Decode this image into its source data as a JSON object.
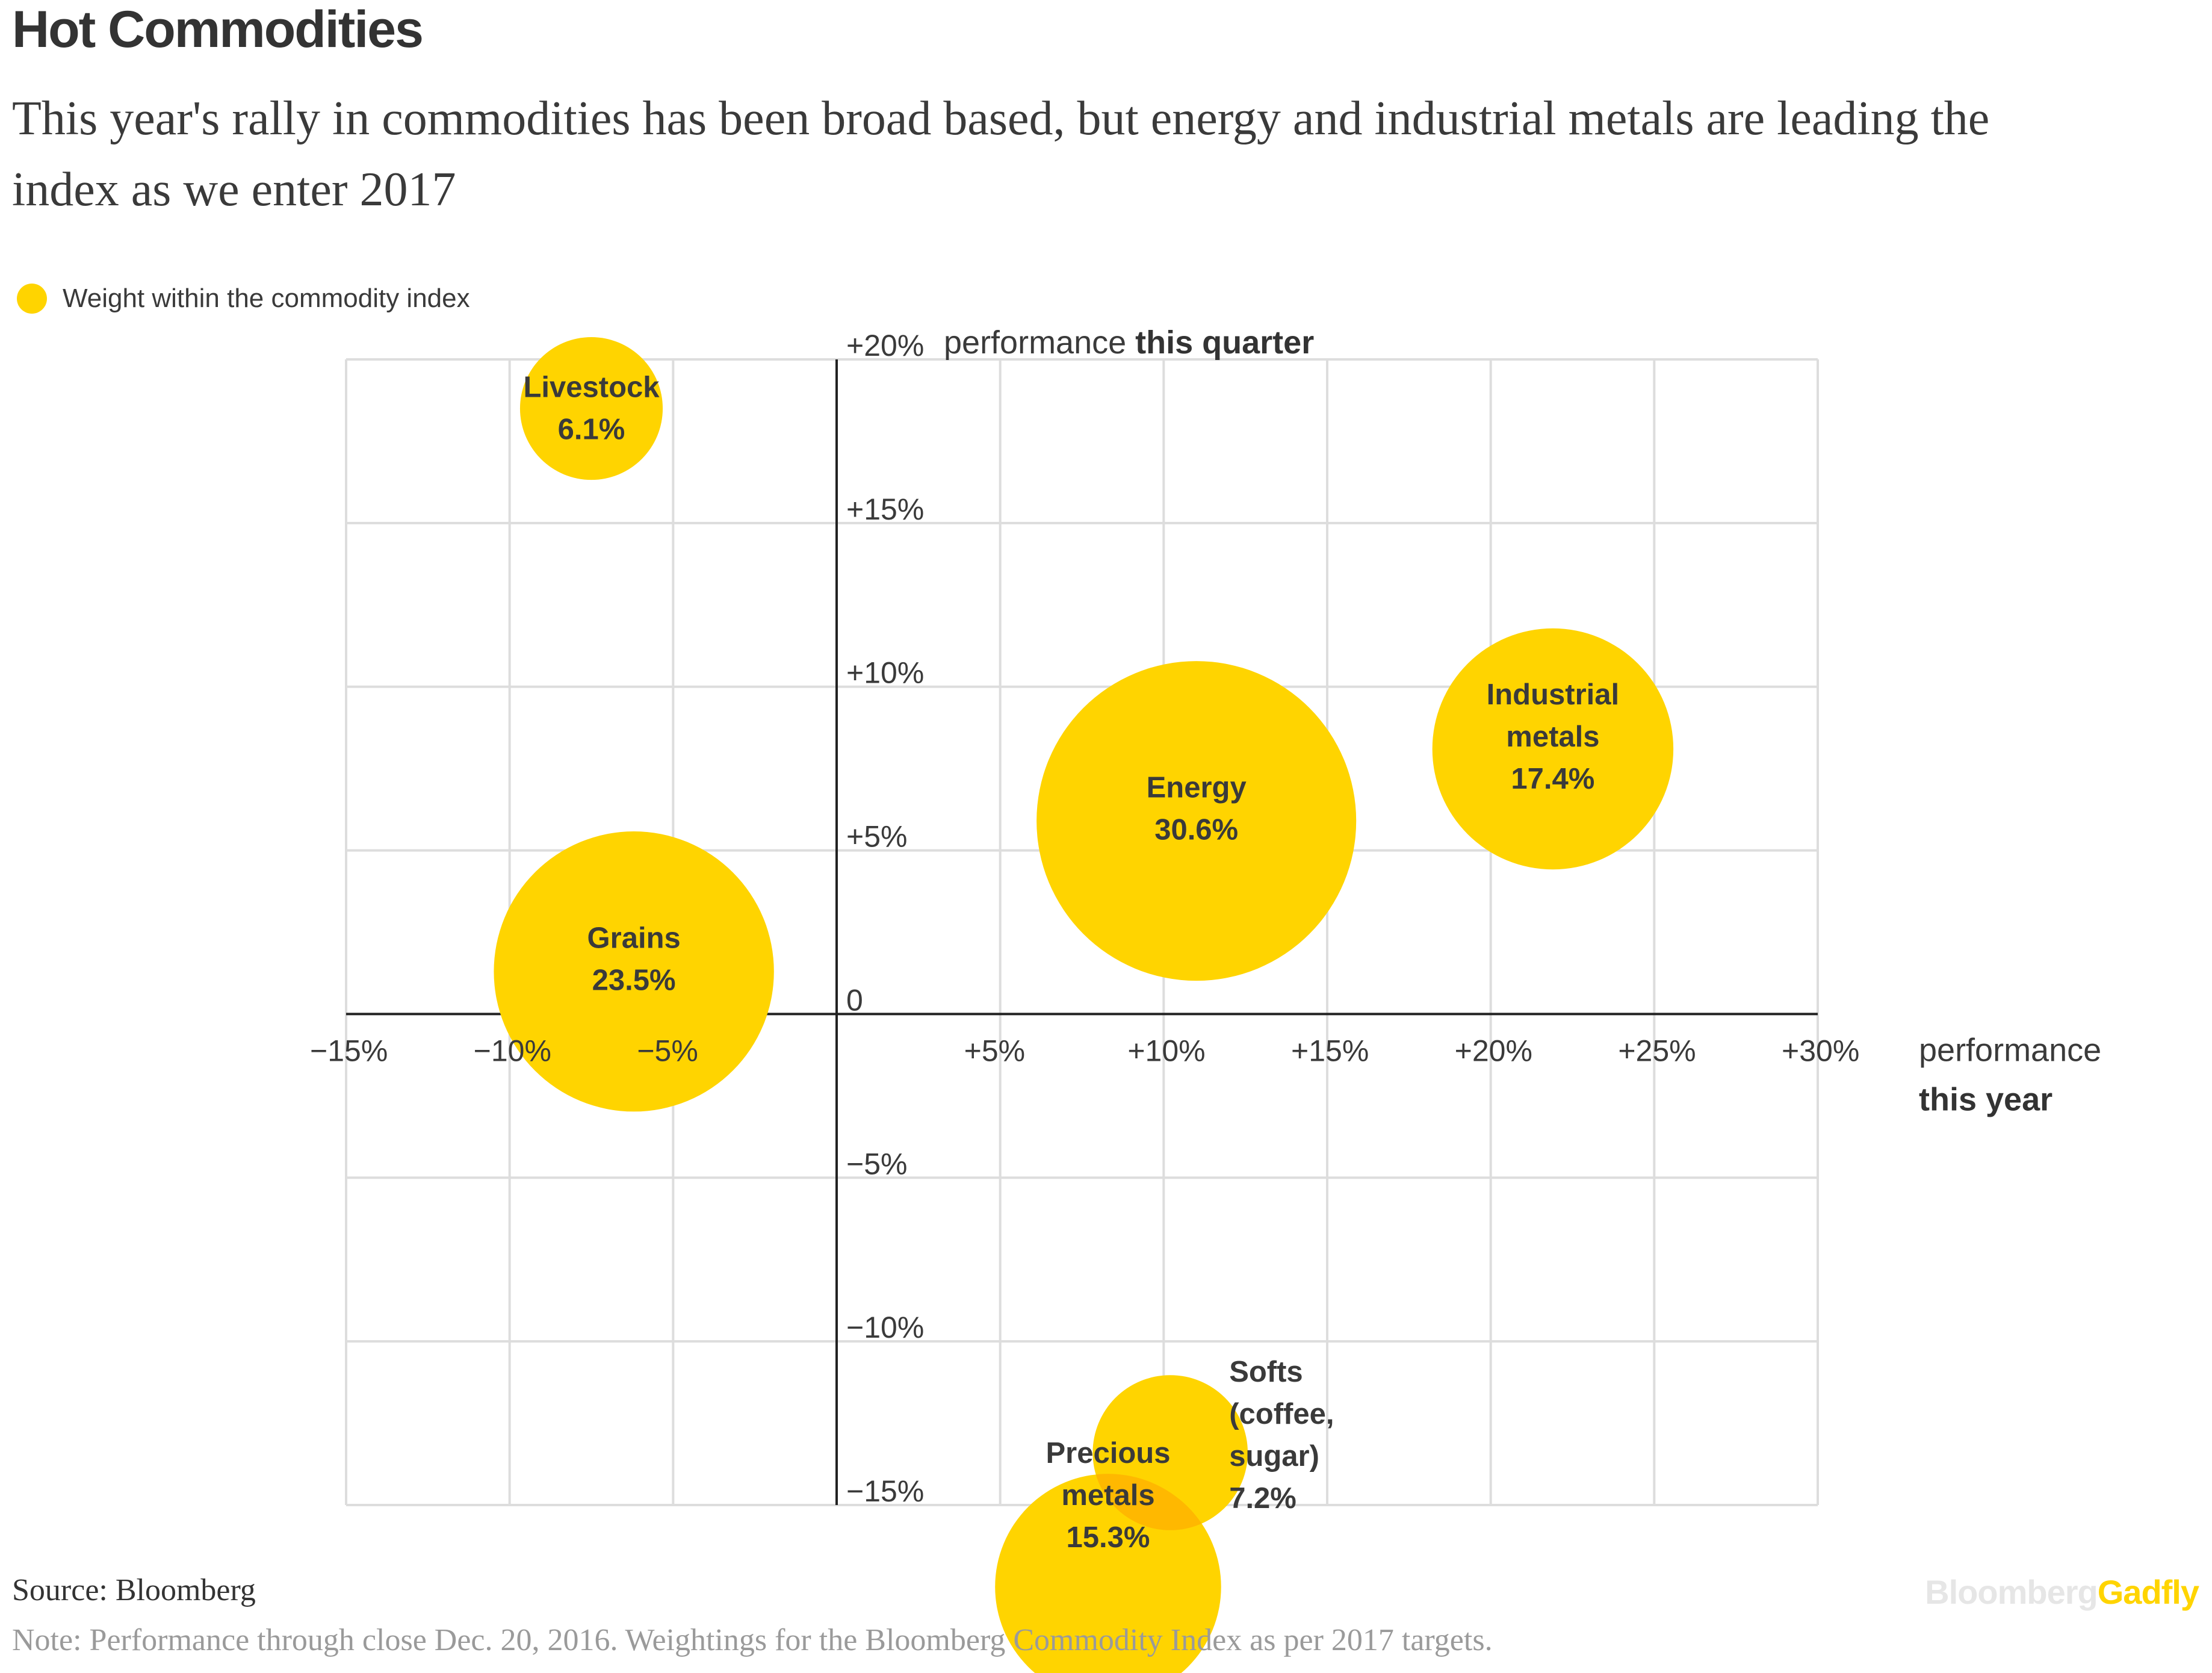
{
  "title": "Hot Commodities",
  "subtitle": "This year's rally in commodities has been broad based, but energy and industrial metals are leading the index as we enter 2017",
  "legend": {
    "label": "Weight within the commodity index",
    "color": "#FFD400"
  },
  "colors": {
    "bubble": "#FFD400",
    "overlap": "#FFB800",
    "grid": "#dddddd",
    "axis": "#222222",
    "text": "#333333"
  },
  "chart_data": {
    "type": "scatter",
    "subtype": "bubble",
    "xlabel": "performance this year",
    "ylabel": "performance this quarter",
    "xlim": [
      -15,
      30
    ],
    "ylim": [
      -15,
      20
    ],
    "grid": true,
    "legend_position": "top-left",
    "x_ticks": [
      {
        "value": -15,
        "label": "−15%"
      },
      {
        "value": -10,
        "label": "−10%"
      },
      {
        "value": -5,
        "label": "−5%"
      },
      {
        "value": 5,
        "label": "+5%"
      },
      {
        "value": 10,
        "label": "+10%"
      },
      {
        "value": 15,
        "label": "+15%"
      },
      {
        "value": 20,
        "label": "+20%"
      },
      {
        "value": 25,
        "label": "+25%"
      },
      {
        "value": 30,
        "label": "+30%"
      }
    ],
    "y_ticks": [
      {
        "value": 20,
        "label": "+20%"
      },
      {
        "value": 15,
        "label": "+15%"
      },
      {
        "value": 10,
        "label": "+10%"
      },
      {
        "value": 5,
        "label": "+5%"
      },
      {
        "value": 0,
        "label": "0"
      },
      {
        "value": -5,
        "label": "−5%"
      },
      {
        "value": -10,
        "label": "−10%"
      },
      {
        "value": -15,
        "label": "−15%"
      }
    ],
    "x_axis_title": {
      "normal": "performance",
      "bold": "this year"
    },
    "y_axis_title": {
      "normal": "performance",
      "bold": "this quarter"
    },
    "points": [
      {
        "name": "Livestock",
        "label_lines": [
          "Livestock",
          "6.1%"
        ],
        "x": -7.5,
        "y": 18.5,
        "weight": 6.1
      },
      {
        "name": "Grains",
        "label_lines": [
          "Grains",
          "23.5%"
        ],
        "x": -6.2,
        "y": 1.3,
        "weight": 23.5
      },
      {
        "name": "Energy",
        "label_lines": [
          "Energy",
          "30.6%"
        ],
        "x": 11.0,
        "y": 5.9,
        "weight": 30.6
      },
      {
        "name": "Industrial metals",
        "label_lines": [
          "Industrial",
          "metals",
          "17.4%"
        ],
        "x": 21.9,
        "y": 8.1,
        "weight": 17.4
      },
      {
        "name": "Precious metals",
        "label_lines": [
          "Precious",
          "metals",
          "15.3%"
        ],
        "x": 8.3,
        "y": -17.5,
        "weight": 15.3
      },
      {
        "name": "Softs (coffee, sugar)",
        "label_lines": [
          "Softs",
          "(coffee,",
          "sugar)",
          "7.2%"
        ],
        "x": 10.2,
        "y": -13.4,
        "weight": 7.2
      }
    ]
  },
  "source": "Source: Bloomberg",
  "note": "Note: Performance through close Dec. 20, 2016. Weightings for the Bloomberg Commodity Index as per 2017 targets.",
  "brand": {
    "part1": "Bloomberg",
    "part2": "Gadfly",
    "color1": "#e6e6e6",
    "color2": "#FFD400"
  }
}
